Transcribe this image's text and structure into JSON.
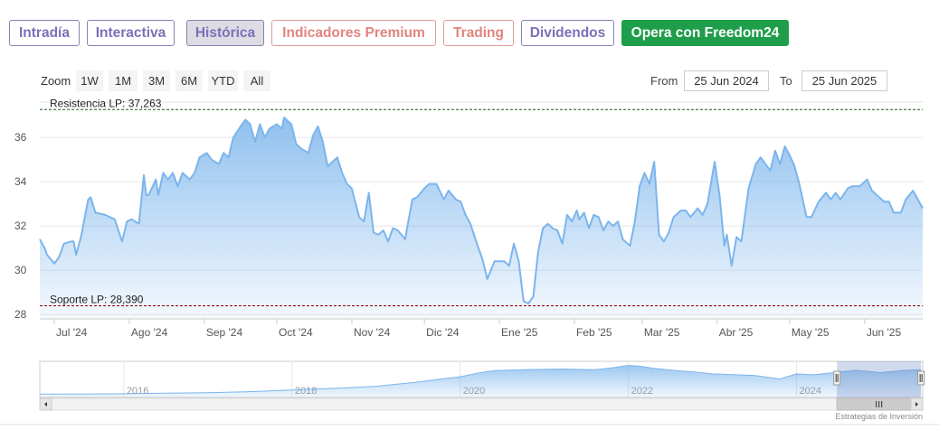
{
  "tabs": [
    {
      "label": "Intradía",
      "style": "purple"
    },
    {
      "label": "Interactiva",
      "style": "purple"
    },
    {
      "label": "Histórica",
      "style": "active"
    },
    {
      "label": "Indicadores Premium",
      "style": "red"
    },
    {
      "label": "Trading",
      "style": "red"
    },
    {
      "label": "Dividendos",
      "style": "purple"
    },
    {
      "label": "Opera con Freedom24",
      "style": "green"
    }
  ],
  "zoom": {
    "label": "Zoom",
    "buttons": [
      "1W",
      "1M",
      "3M",
      "6M",
      "YTD",
      "All"
    ]
  },
  "range": {
    "from_label": "From",
    "from_value": "25 Jun 2024",
    "to_label": "To",
    "to_value": "25 Jun 2025"
  },
  "credit": "Estrategias de Inversión",
  "colors": {
    "line": "#7cb5ec",
    "fill_top": "#7cb5ec",
    "resistance": "#1a5c1a",
    "support": "#8b0000",
    "grid": "#e6e6e6",
    "navigator_mask": "#6685c2"
  },
  "chart_data": {
    "type": "area",
    "title": "",
    "xlabel": "",
    "ylabel": "",
    "ylim": [
      27.8,
      37.6
    ],
    "yticks": [
      28,
      30,
      32,
      34,
      36
    ],
    "xlim": [
      "2024-06-25",
      "2025-06-25"
    ],
    "x_ticks": [
      {
        "date": "2024-07-01",
        "label": "Jul '24"
      },
      {
        "date": "2024-08-01",
        "label": "Ago '24"
      },
      {
        "date": "2024-09-01",
        "label": "Sep '24"
      },
      {
        "date": "2024-10-01",
        "label": "Oct '24"
      },
      {
        "date": "2024-11-01",
        "label": "Nov '24"
      },
      {
        "date": "2024-12-01",
        "label": "Dic '24"
      },
      {
        "date": "2025-01-01",
        "label": "Ene '25"
      },
      {
        "date": "2025-02-01",
        "label": "Feb '25"
      },
      {
        "date": "2025-03-01",
        "label": "Mar '25"
      },
      {
        "date": "2025-04-01",
        "label": "Abr '25"
      },
      {
        "date": "2025-05-01",
        "label": "May '25"
      },
      {
        "date": "2025-06-01",
        "label": "Jun '25"
      }
    ],
    "series": [
      {
        "points": [
          [
            "2024-06-25",
            31.4
          ],
          [
            "2024-06-27",
            31.0
          ],
          [
            "2024-06-28",
            30.7
          ],
          [
            "2024-07-01",
            30.3
          ],
          [
            "2024-07-03",
            30.6
          ],
          [
            "2024-07-05",
            31.2
          ],
          [
            "2024-07-08",
            31.3
          ],
          [
            "2024-07-09",
            31.3
          ],
          [
            "2024-07-10",
            30.7
          ],
          [
            "2024-07-12",
            31.5
          ],
          [
            "2024-07-15",
            33.2
          ],
          [
            "2024-07-16",
            33.3
          ],
          [
            "2024-07-18",
            32.6
          ],
          [
            "2024-07-22",
            32.5
          ],
          [
            "2024-07-24",
            32.4
          ],
          [
            "2024-07-26",
            32.3
          ],
          [
            "2024-07-29",
            31.3
          ],
          [
            "2024-07-31",
            32.2
          ],
          [
            "2024-08-02",
            32.3
          ],
          [
            "2024-08-05",
            32.1
          ],
          [
            "2024-08-07",
            34.3
          ],
          [
            "2024-08-08",
            33.4
          ],
          [
            "2024-08-09",
            33.4
          ],
          [
            "2024-08-12",
            34.1
          ],
          [
            "2024-08-13",
            33.4
          ],
          [
            "2024-08-15",
            34.4
          ],
          [
            "2024-08-17",
            34.1
          ],
          [
            "2024-08-19",
            34.4
          ],
          [
            "2024-08-21",
            33.8
          ],
          [
            "2024-08-23",
            34.4
          ],
          [
            "2024-08-26",
            34.1
          ],
          [
            "2024-08-28",
            34.4
          ],
          [
            "2024-08-30",
            35.1
          ],
          [
            "2024-09-02",
            35.3
          ],
          [
            "2024-09-04",
            35.0
          ],
          [
            "2024-09-07",
            34.8
          ],
          [
            "2024-09-09",
            35.3
          ],
          [
            "2024-09-11",
            35.1
          ],
          [
            "2024-09-13",
            36.0
          ],
          [
            "2024-09-16",
            36.5
          ],
          [
            "2024-09-18",
            36.8
          ],
          [
            "2024-09-20",
            36.6
          ],
          [
            "2024-09-22",
            35.8
          ],
          [
            "2024-09-24",
            36.6
          ],
          [
            "2024-09-26",
            36.0
          ],
          [
            "2024-09-28",
            36.4
          ],
          [
            "2024-10-01",
            36.6
          ],
          [
            "2024-10-03",
            36.4
          ],
          [
            "2024-10-04",
            36.9
          ],
          [
            "2024-10-07",
            36.6
          ],
          [
            "2024-10-09",
            35.7
          ],
          [
            "2024-10-11",
            35.5
          ],
          [
            "2024-10-14",
            35.3
          ],
          [
            "2024-10-16",
            36.1
          ],
          [
            "2024-10-18",
            36.5
          ],
          [
            "2024-10-20",
            35.8
          ],
          [
            "2024-10-22",
            34.7
          ],
          [
            "2024-10-24",
            34.9
          ],
          [
            "2024-10-26",
            35.1
          ],
          [
            "2024-10-28",
            34.4
          ],
          [
            "2024-10-30",
            33.9
          ],
          [
            "2024-11-01",
            33.7
          ],
          [
            "2024-11-04",
            32.4
          ],
          [
            "2024-11-06",
            32.2
          ],
          [
            "2024-11-08",
            33.5
          ],
          [
            "2024-11-10",
            31.7
          ],
          [
            "2024-11-12",
            31.6
          ],
          [
            "2024-11-14",
            31.8
          ],
          [
            "2024-11-16",
            31.3
          ],
          [
            "2024-11-18",
            31.9
          ],
          [
            "2024-11-20",
            31.8
          ],
          [
            "2024-11-23",
            31.4
          ],
          [
            "2024-11-26",
            33.2
          ],
          [
            "2024-11-28",
            33.3
          ],
          [
            "2024-12-01",
            33.7
          ],
          [
            "2024-12-03",
            33.9
          ],
          [
            "2024-12-06",
            33.9
          ],
          [
            "2024-12-09",
            33.2
          ],
          [
            "2024-12-11",
            33.6
          ],
          [
            "2024-12-14",
            33.2
          ],
          [
            "2024-12-16",
            33.1
          ],
          [
            "2024-12-18",
            32.5
          ],
          [
            "2024-12-20",
            32.1
          ],
          [
            "2024-12-23",
            31.1
          ],
          [
            "2024-12-25",
            30.5
          ],
          [
            "2024-12-27",
            29.6
          ],
          [
            "2024-12-30",
            30.4
          ],
          [
            "2025-01-01",
            30.4
          ],
          [
            "2025-01-03",
            30.4
          ],
          [
            "2025-01-05",
            30.2
          ],
          [
            "2025-01-07",
            31.2
          ],
          [
            "2025-01-09",
            30.4
          ],
          [
            "2025-01-11",
            28.6
          ],
          [
            "2025-01-13",
            28.5
          ],
          [
            "2025-01-15",
            28.8
          ],
          [
            "2025-01-17",
            30.8
          ],
          [
            "2025-01-19",
            31.9
          ],
          [
            "2025-01-21",
            32.1
          ],
          [
            "2025-01-23",
            31.9
          ],
          [
            "2025-01-25",
            31.8
          ],
          [
            "2025-01-27",
            31.2
          ],
          [
            "2025-01-29",
            32.5
          ],
          [
            "2025-01-31",
            32.2
          ],
          [
            "2025-02-02",
            32.7
          ],
          [
            "2025-02-03",
            32.3
          ],
          [
            "2025-02-05",
            32.6
          ],
          [
            "2025-02-07",
            31.9
          ],
          [
            "2025-02-09",
            32.5
          ],
          [
            "2025-02-11",
            32.4
          ],
          [
            "2025-02-13",
            31.8
          ],
          [
            "2025-02-15",
            32.2
          ],
          [
            "2025-02-17",
            32.0
          ],
          [
            "2025-02-19",
            32.2
          ],
          [
            "2025-02-21",
            31.4
          ],
          [
            "2025-02-24",
            31.1
          ],
          [
            "2025-02-26",
            32.2
          ],
          [
            "2025-02-28",
            33.8
          ],
          [
            "2025-03-02",
            34.4
          ],
          [
            "2025-03-04",
            33.9
          ],
          [
            "2025-03-06",
            34.9
          ],
          [
            "2025-03-08",
            31.6
          ],
          [
            "2025-03-10",
            31.3
          ],
          [
            "2025-03-12",
            31.7
          ],
          [
            "2025-03-14",
            32.4
          ],
          [
            "2025-03-17",
            32.7
          ],
          [
            "2025-03-19",
            32.7
          ],
          [
            "2025-03-21",
            32.4
          ],
          [
            "2025-03-24",
            32.8
          ],
          [
            "2025-03-26",
            32.5
          ],
          [
            "2025-03-28",
            33.0
          ],
          [
            "2025-03-31",
            34.9
          ],
          [
            "2025-04-02",
            33.4
          ],
          [
            "2025-04-04",
            31.1
          ],
          [
            "2025-04-05",
            31.6
          ],
          [
            "2025-04-07",
            30.2
          ],
          [
            "2025-04-09",
            31.5
          ],
          [
            "2025-04-11",
            31.3
          ],
          [
            "2025-04-14",
            33.7
          ],
          [
            "2025-04-17",
            34.8
          ],
          [
            "2025-04-19",
            35.1
          ],
          [
            "2025-04-21",
            34.8
          ],
          [
            "2025-04-23",
            34.5
          ],
          [
            "2025-04-25",
            35.4
          ],
          [
            "2025-04-27",
            34.8
          ],
          [
            "2025-04-29",
            35.6
          ],
          [
            "2025-05-01",
            35.2
          ],
          [
            "2025-05-03",
            34.7
          ],
          [
            "2025-05-05",
            33.9
          ],
          [
            "2025-05-08",
            32.4
          ],
          [
            "2025-05-10",
            32.4
          ],
          [
            "2025-05-13",
            33.1
          ],
          [
            "2025-05-16",
            33.5
          ],
          [
            "2025-05-18",
            33.2
          ],
          [
            "2025-05-20",
            33.5
          ],
          [
            "2025-05-22",
            33.2
          ],
          [
            "2025-05-25",
            33.7
          ],
          [
            "2025-05-27",
            33.8
          ],
          [
            "2025-05-30",
            33.8
          ],
          [
            "2025-06-02",
            34.1
          ],
          [
            "2025-06-04",
            33.6
          ],
          [
            "2025-06-06",
            33.4
          ],
          [
            "2025-06-09",
            33.1
          ],
          [
            "2025-06-11",
            33.1
          ],
          [
            "2025-06-13",
            32.6
          ],
          [
            "2025-06-16",
            32.6
          ],
          [
            "2025-06-18",
            33.2
          ],
          [
            "2025-06-21",
            33.6
          ],
          [
            "2025-06-25",
            32.8
          ]
        ]
      }
    ],
    "reference_lines": [
      {
        "label": "Resistencia LP: 37,263",
        "value": 37.263,
        "style": "dashed",
        "color": "#1a5c1a"
      },
      {
        "label": "Soporte LP: 28,390",
        "value": 28.39,
        "style": "dashed",
        "color": "#8b0000"
      }
    ],
    "navigator": {
      "xlim": [
        2015,
        2025.5
      ],
      "year_ticks": [
        "2016",
        "2018",
        "2020",
        "2022",
        "2024"
      ],
      "selected_range": [
        2024.48,
        2025.48
      ],
      "points": [
        [
          2015.0,
          12.8
        ],
        [
          2015.6,
          12.9
        ],
        [
          2016.0,
          13.1
        ],
        [
          2016.5,
          13.6
        ],
        [
          2017.0,
          13.9
        ],
        [
          2017.5,
          14.8
        ],
        [
          2018.0,
          16.2
        ],
        [
          2018.5,
          17.6
        ],
        [
          2019.0,
          19.3
        ],
        [
          2019.5,
          22.8
        ],
        [
          2019.8,
          25.6
        ],
        [
          2020.0,
          27.2
        ],
        [
          2020.2,
          30.1
        ],
        [
          2020.4,
          32.3
        ],
        [
          2020.8,
          33.2
        ],
        [
          2021.2,
          33.6
        ],
        [
          2021.6,
          33.1
        ],
        [
          2021.8,
          34.6
        ],
        [
          2022.0,
          36.6
        ],
        [
          2022.15,
          35.9
        ],
        [
          2022.3,
          34.2
        ],
        [
          2022.6,
          32.1
        ],
        [
          2022.8,
          31.1
        ],
        [
          2023.0,
          29.6
        ],
        [
          2023.5,
          28.3
        ],
        [
          2023.8,
          25.4
        ],
        [
          2024.0,
          29.6
        ],
        [
          2024.2,
          28.8
        ],
        [
          2024.45,
          30.6
        ],
        [
          2024.7,
          32.6
        ],
        [
          2025.0,
          30.6
        ],
        [
          2025.3,
          32.6
        ],
        [
          2025.48,
          33.1
        ]
      ]
    }
  }
}
